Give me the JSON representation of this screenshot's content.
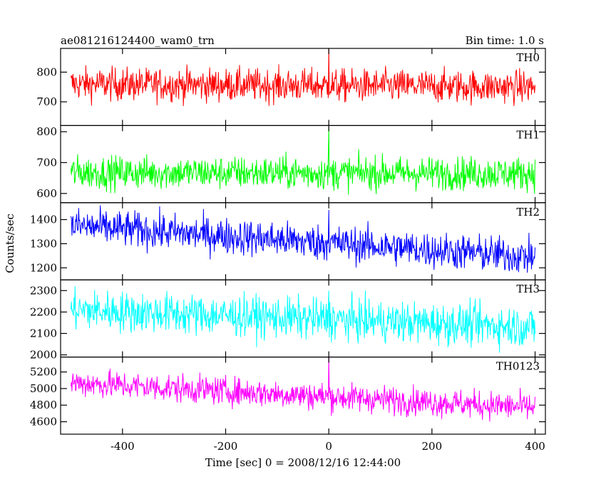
{
  "title_left": "ae081216124400_wam0_trn",
  "title_right": "Bin time: 1.0 s",
  "chart_data": {
    "type": "line",
    "xlabel": "Time [sec] 0 = 2008/12/16 12:44:00",
    "ylabel": "Counts/sec",
    "xlim": [
      -520,
      420
    ],
    "xticks": [
      -400,
      -200,
      0,
      200,
      400
    ],
    "bin_time_s": 1.0,
    "panels": [
      {
        "name": "TH0",
        "color": "#ff0000",
        "ylim": [
          620,
          880
        ],
        "yticks": [
          700,
          800
        ],
        "level_start": 760,
        "level_end": 750,
        "noise": 28,
        "spike_at_zero": 885
      },
      {
        "name": "TH1",
        "color": "#00ff00",
        "ylim": [
          570,
          820
        ],
        "yticks": [
          600,
          700,
          800
        ],
        "level_start": 668,
        "level_end": 665,
        "noise": 27,
        "spike_at_zero": 815
      },
      {
        "name": "TH2",
        "color": "#0000ff",
        "ylim": [
          1150,
          1470
        ],
        "yticks": [
          1200,
          1300,
          1400
        ],
        "level_start": 1375,
        "level_end": 1245,
        "noise": 38,
        "spike_at_zero": 1440
      },
      {
        "name": "TH3",
        "color": "#00ffff",
        "ylim": [
          1990,
          2350
        ],
        "yticks": [
          2000,
          2100,
          2200,
          2300
        ],
        "level_start": 2210,
        "level_end": 2130,
        "noise": 48,
        "spike_at_zero": 2300
      },
      {
        "name": "TH0123",
        "color": "#ff00ff",
        "ylim": [
          4450,
          5380
        ],
        "yticks": [
          4600,
          4800,
          5000,
          5200
        ],
        "level_start": 5070,
        "level_end": 4770,
        "noise": 85,
        "spike_at_zero": 5380
      }
    ]
  }
}
